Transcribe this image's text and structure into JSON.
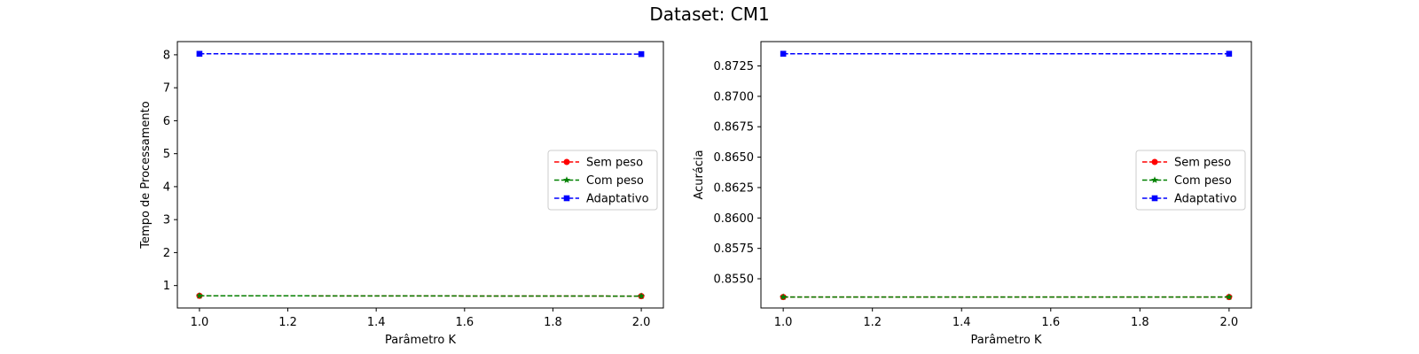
{
  "figure": {
    "title": "Dataset: CM1"
  },
  "chart_data": [
    {
      "type": "line",
      "xlabel": "Parâmetro K",
      "ylabel": "Tempo de Processamento",
      "xlim": [
        0.95,
        2.05
      ],
      "ylim": [
        0.32,
        8.4
      ],
      "xticks": [
        1.0,
        1.2,
        1.4,
        1.6,
        1.8,
        2.0
      ],
      "xtick_labels": [
        "1.0",
        "1.2",
        "1.4",
        "1.6",
        "1.8",
        "2.0"
      ],
      "yticks": [
        1,
        2,
        3,
        4,
        5,
        6,
        7,
        8
      ],
      "ytick_labels": [
        "1",
        "2",
        "3",
        "4",
        "5",
        "6",
        "7",
        "8"
      ],
      "legend_position": "center-right",
      "x": [
        1.0,
        2.0
      ],
      "series": [
        {
          "name": "Sem peso",
          "values": [
            0.69,
            0.68
          ],
          "color": "#ff0000",
          "marker": "circle"
        },
        {
          "name": "Com peso",
          "values": [
            0.69,
            0.68
          ],
          "color": "#008000",
          "marker": "star"
        },
        {
          "name": "Adaptativo",
          "values": [
            8.03,
            8.02
          ],
          "color": "#0000ff",
          "marker": "square"
        }
      ]
    },
    {
      "type": "line",
      "xlabel": "Parâmetro K",
      "ylabel": "Acurácia",
      "xlim": [
        0.95,
        2.05
      ],
      "ylim": [
        0.8526,
        0.8745
      ],
      "xticks": [
        1.0,
        1.2,
        1.4,
        1.6,
        1.8,
        2.0
      ],
      "xtick_labels": [
        "1.0",
        "1.2",
        "1.4",
        "1.6",
        "1.8",
        "2.0"
      ],
      "yticks": [
        0.855,
        0.8575,
        0.86,
        0.8625,
        0.865,
        0.8675,
        0.87,
        0.8725
      ],
      "ytick_labels": [
        "0.8550",
        "0.8575",
        "0.8600",
        "0.8625",
        "0.8650",
        "0.8675",
        "0.8700",
        "0.8725"
      ],
      "legend_position": "center-right",
      "x": [
        1.0,
        2.0
      ],
      "series": [
        {
          "name": "Sem peso",
          "values": [
            0.8535,
            0.8535
          ],
          "color": "#ff0000",
          "marker": "circle"
        },
        {
          "name": "Com peso",
          "values": [
            0.8535,
            0.8535
          ],
          "color": "#008000",
          "marker": "star"
        },
        {
          "name": "Adaptativo",
          "values": [
            0.8735,
            0.8735
          ],
          "color": "#0000ff",
          "marker": "square"
        }
      ]
    }
  ]
}
